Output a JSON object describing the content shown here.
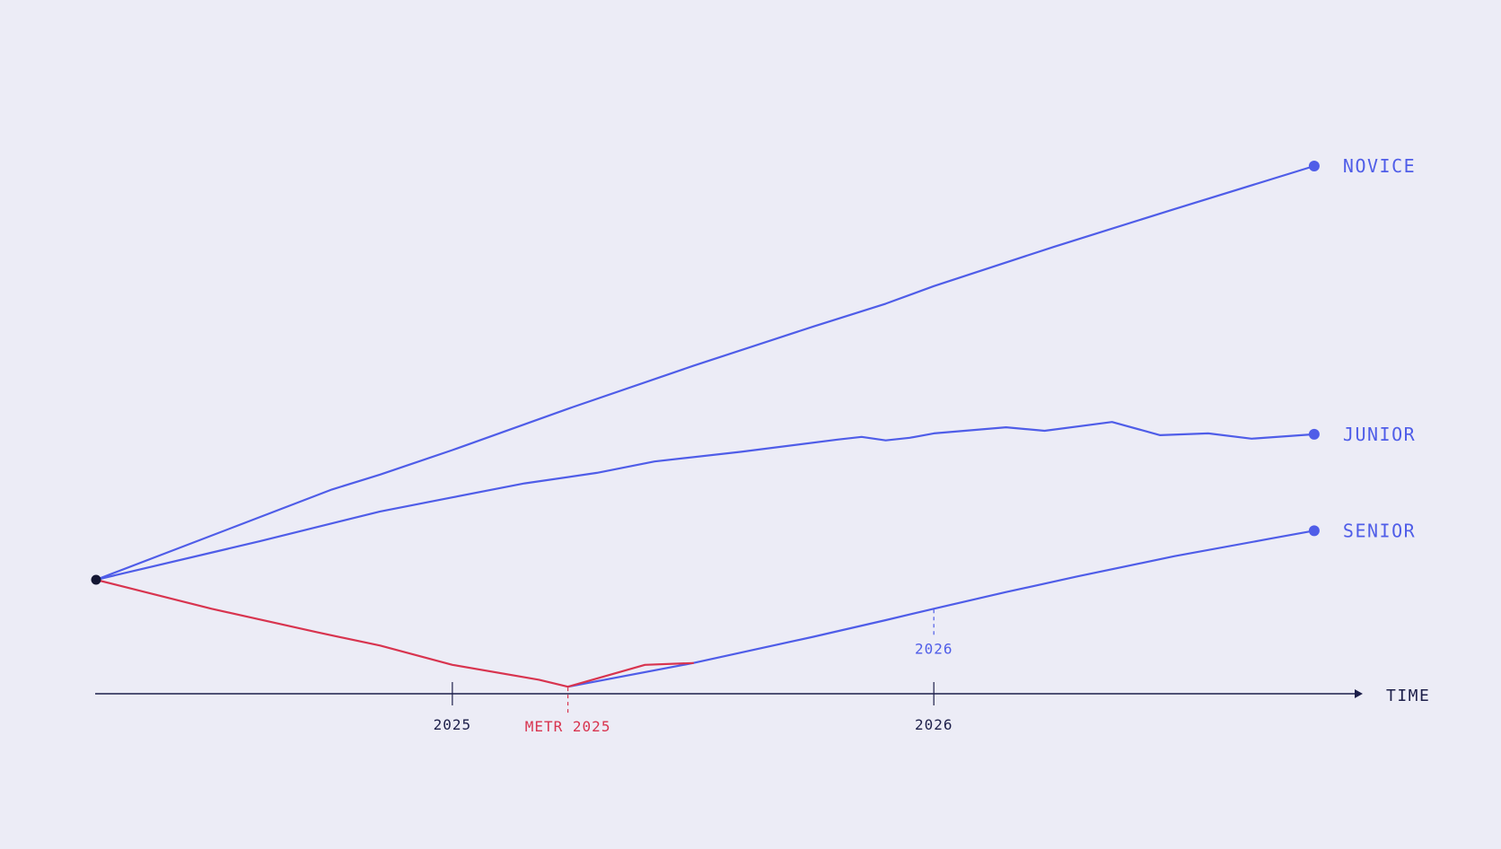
{
  "chart_data": {
    "type": "line",
    "title": "",
    "xlabel": "TIME",
    "ylabel": "",
    "grid": false,
    "legend": "none",
    "x_ticks": [
      {
        "x": 2025.0,
        "label": "2025"
      },
      {
        "x": 2026.0,
        "label": "2026"
      }
    ],
    "xlim": [
      2024.26,
      2026.82
    ],
    "ylim": [
      -130,
      470
    ],
    "origin": {
      "x": 2024.26,
      "y": 0
    },
    "series": [
      {
        "name": "NOVICE",
        "color": "#4f5de8",
        "points": [
          [
            2024.26,
            0
          ],
          [
            2024.55,
            61
          ],
          [
            2024.75,
            103
          ],
          [
            2024.85,
            120
          ],
          [
            2025.0,
            148
          ],
          [
            2025.25,
            197
          ],
          [
            2025.5,
            244
          ],
          [
            2025.75,
            289
          ],
          [
            2025.9,
            315
          ],
          [
            2026.0,
            335
          ],
          [
            2026.25,
            380
          ],
          [
            2026.5,
            423
          ],
          [
            2026.79,
            472
          ]
        ]
      },
      {
        "name": "JUNIOR",
        "color": "#4f5de8",
        "points": [
          [
            2024.26,
            0
          ],
          [
            2024.6,
            44
          ],
          [
            2024.85,
            78
          ],
          [
            2025.0,
            94
          ],
          [
            2025.15,
            110
          ],
          [
            2025.3,
            122
          ],
          [
            2025.42,
            135
          ],
          [
            2025.6,
            146
          ],
          [
            2025.8,
            160
          ],
          [
            2025.85,
            163
          ],
          [
            2025.9,
            159
          ],
          [
            2025.95,
            162
          ],
          [
            2026.0,
            167
          ],
          [
            2026.15,
            174
          ],
          [
            2026.23,
            170
          ],
          [
            2026.37,
            180
          ],
          [
            2026.47,
            165
          ],
          [
            2026.57,
            167
          ],
          [
            2026.66,
            161
          ],
          [
            2026.79,
            166
          ]
        ]
      },
      {
        "name": "SENIOR",
        "color": "#4f5de8",
        "points": [
          [
            2025.24,
            -122
          ],
          [
            2025.5,
            -95
          ],
          [
            2025.6,
            -83
          ],
          [
            2025.75,
            -65
          ],
          [
            2025.9,
            -46
          ],
          [
            2026.0,
            -33
          ],
          [
            2026.15,
            -14
          ],
          [
            2026.3,
            4
          ],
          [
            2026.5,
            27
          ],
          [
            2026.7,
            47
          ],
          [
            2026.79,
            56
          ]
        ]
      },
      {
        "name": "METR 2025",
        "color": "#d8344f",
        "points": [
          [
            2024.26,
            0
          ],
          [
            2024.5,
            -33
          ],
          [
            2024.72,
            -60
          ],
          [
            2024.85,
            -75
          ],
          [
            2025.0,
            -97
          ],
          [
            2025.18,
            -114
          ],
          [
            2025.24,
            -122
          ],
          [
            2025.4,
            -97
          ],
          [
            2025.5,
            -95
          ]
        ]
      }
    ],
    "annotations": [
      {
        "label": "METR 2025",
        "x": 2025.24,
        "y": -122,
        "color": "#d8344f"
      },
      {
        "label": "2026",
        "x": 2026.0,
        "y": -33,
        "color": "#4f5de8"
      }
    ],
    "colors": {
      "background": "#ececf6",
      "axis": "#1d1f4a",
      "origin_dot": "#141633",
      "blue": "#4f5de8",
      "red": "#d8344f"
    }
  }
}
